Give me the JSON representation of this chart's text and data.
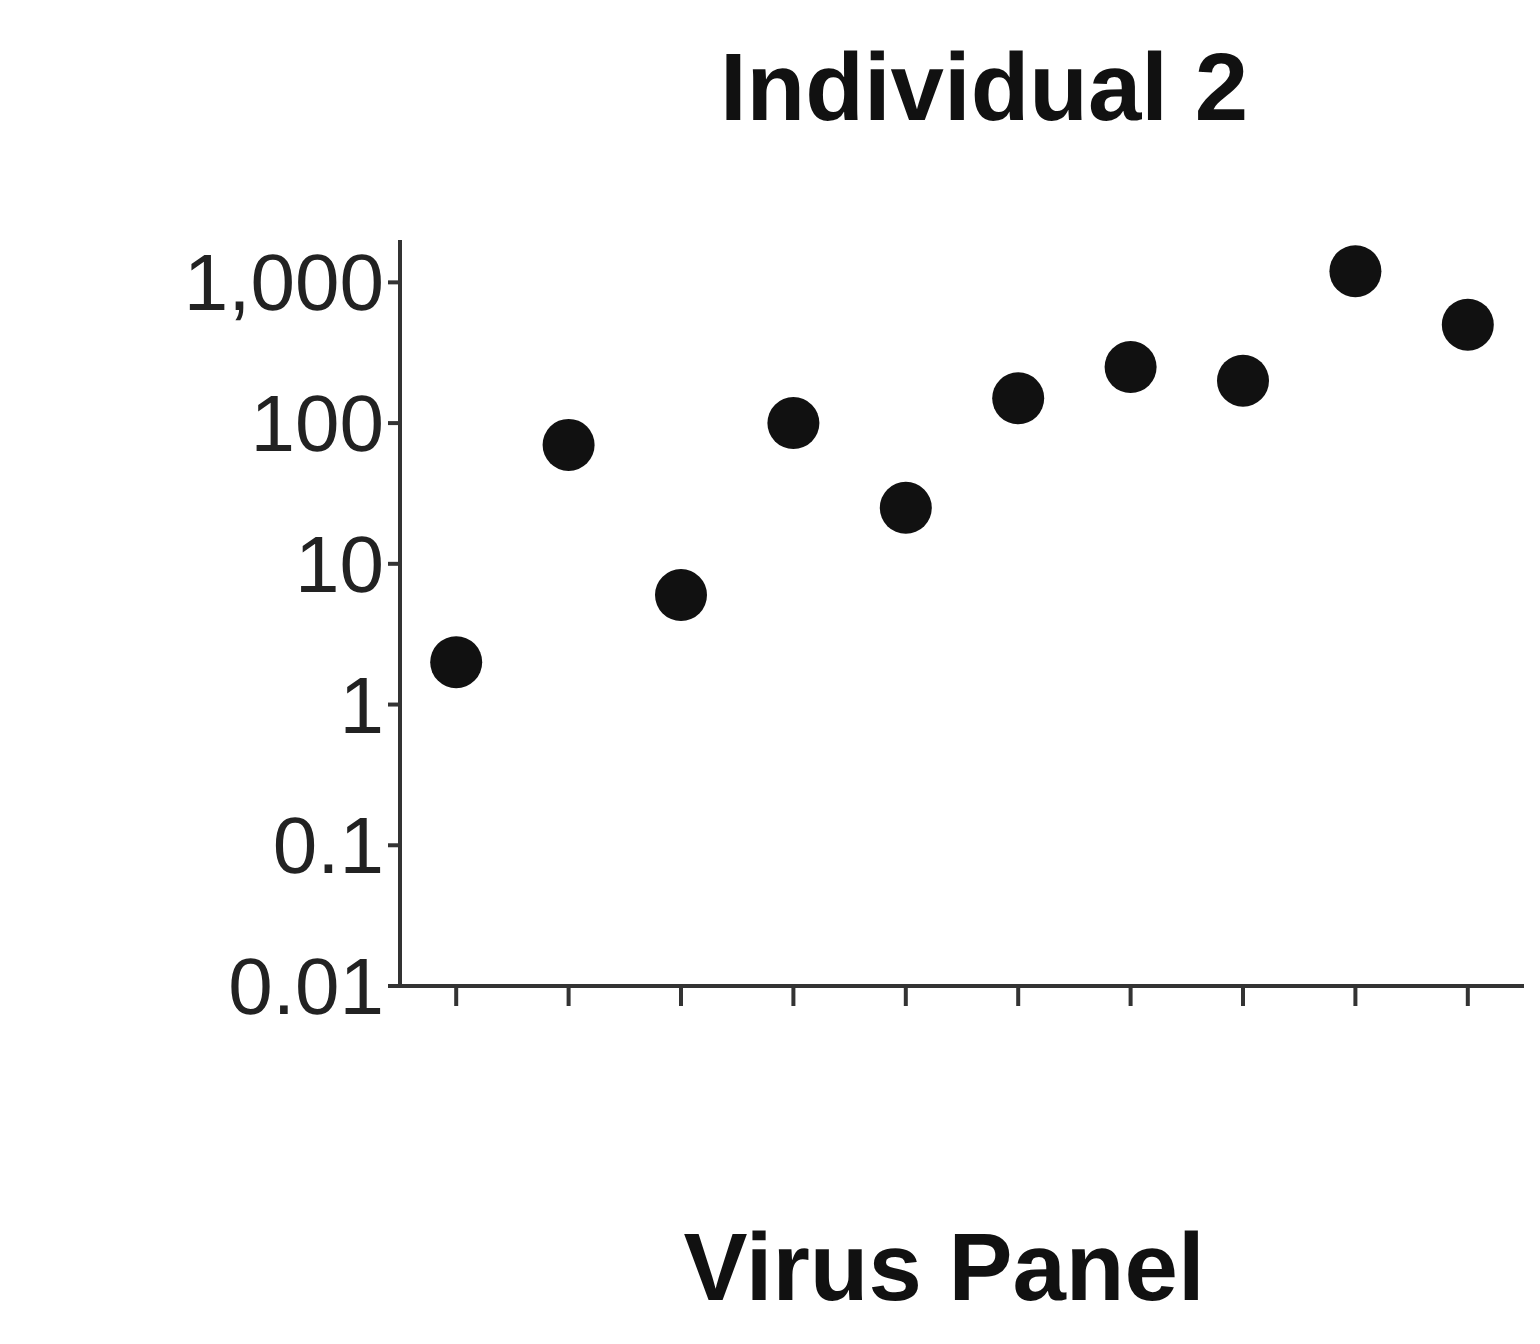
{
  "chart_data": {
    "type": "scatter",
    "title": "Individual 2",
    "xlabel": "Virus Panel",
    "categories": [
      null,
      null,
      null,
      null,
      null,
      null,
      null,
      null,
      null,
      null
    ],
    "series": [
      {
        "color": "#111111",
        "values": [
          2,
          70,
          6,
          100,
          25,
          150,
          250,
          200,
          1200,
          500
        ]
      }
    ],
    "log": "y",
    "ylim": [
      0.01,
      2000
    ],
    "yticks": [
      0.01,
      0.1,
      1,
      10,
      100,
      {
        "value": 1000,
        "label": "1,000"
      }
    ],
    "marker": "circle",
    "grid": false
  }
}
